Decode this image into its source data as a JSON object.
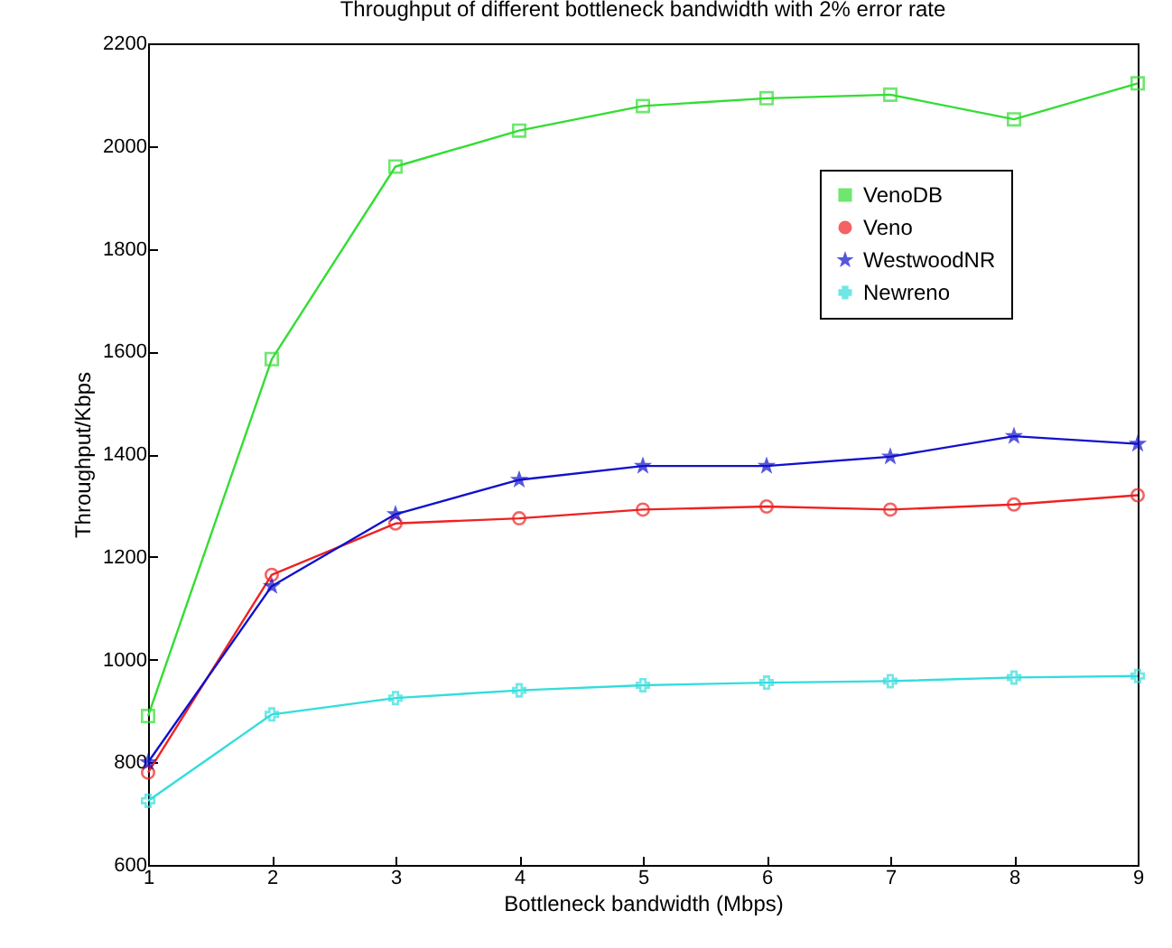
{
  "chart_data": {
    "type": "line",
    "title": "Throughput of different bottleneck bandwidth with 2% error rate",
    "xlabel": "Bottleneck bandwidth (Mbps)",
    "ylabel": "Throughput/Kbps",
    "x": [
      1,
      2,
      3,
      4,
      5,
      6,
      7,
      8,
      9
    ],
    "series": [
      {
        "name": "VenoDB",
        "color": "#33dd33",
        "marker": "square",
        "values": [
          890,
          1585,
          1960,
          2030,
          2078,
          2093,
          2100,
          2052,
          2122
        ]
      },
      {
        "name": "Veno",
        "color": "#ee2222",
        "marker": "circle",
        "values": [
          780,
          1165,
          1265,
          1275,
          1292,
          1298,
          1292,
          1302,
          1320
        ]
      },
      {
        "name": "WestwoodNR",
        "color": "#1111cc",
        "marker": "star",
        "values": [
          800,
          1143,
          1283,
          1350,
          1377,
          1377,
          1395,
          1435,
          1420
        ]
      },
      {
        "name": "Newreno",
        "color": "#33dddd",
        "marker": "cross",
        "values": [
          725,
          893,
          925,
          940,
          950,
          955,
          958,
          965,
          968
        ]
      }
    ],
    "xlim": [
      1,
      9
    ],
    "xticks": [
      1,
      2,
      3,
      4,
      5,
      6,
      7,
      8,
      9
    ],
    "ylim": [
      600,
      2200
    ],
    "yticks": [
      600,
      800,
      1000,
      1200,
      1400,
      1600,
      1800,
      2000,
      2200
    ],
    "grid": false,
    "legend": "top right",
    "line_style": "solid"
  }
}
